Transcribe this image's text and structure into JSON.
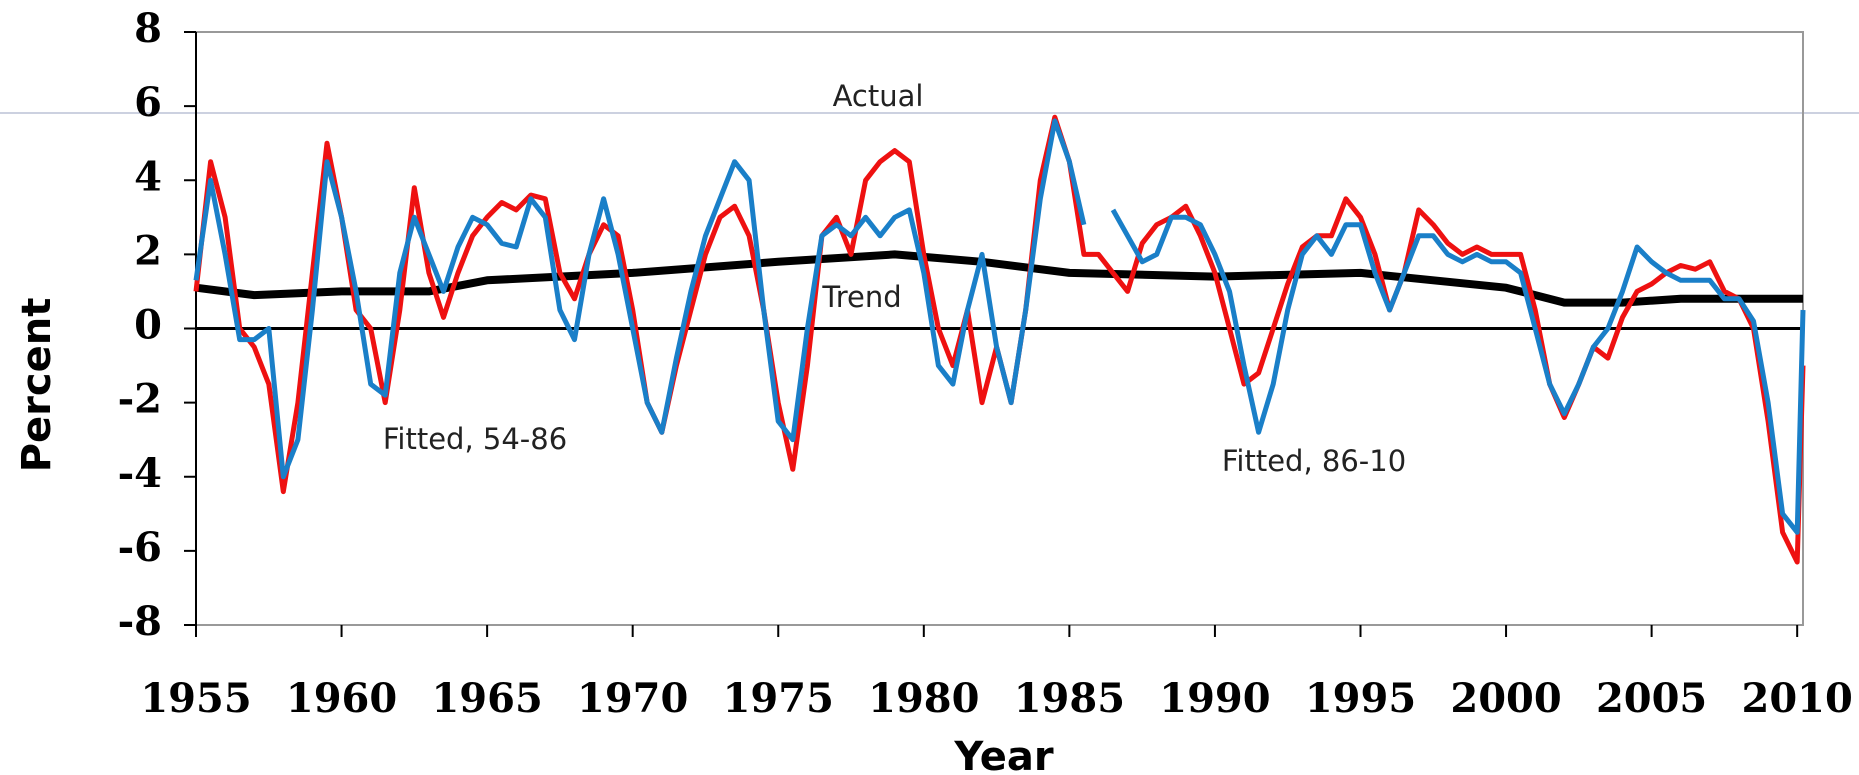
{
  "chart_data": {
    "type": "line",
    "xlabel": "Year",
    "ylabel": "Percent",
    "xlim": [
      1955,
      2010.2
    ],
    "ylim": [
      -8,
      8
    ],
    "xticks": [
      1955,
      1960,
      1965,
      1970,
      1975,
      1980,
      1985,
      1990,
      1995,
      2000,
      2005,
      2010
    ],
    "yticks": [
      -8,
      -6,
      -4,
      -2,
      0,
      2,
      4,
      6,
      8
    ],
    "annotations": [
      "Actual",
      "Trend",
      "Fitted, 54-86",
      "Fitted, 86-10"
    ],
    "x": [
      1955,
      1955.5,
      1956,
      1956.5,
      1957,
      1957.5,
      1958,
      1958.5,
      1959,
      1959.5,
      1960,
      1960.5,
      1961,
      1961.5,
      1962,
      1962.5,
      1963,
      1963.5,
      1964,
      1964.5,
      1965,
      1965.5,
      1966,
      1966.5,
      1967,
      1967.5,
      1968,
      1968.5,
      1969,
      1969.5,
      1970,
      1970.5,
      1971,
      1971.5,
      1972,
      1972.5,
      1973,
      1973.5,
      1974,
      1974.5,
      1975,
      1975.5,
      1976,
      1976.5,
      1977,
      1977.5,
      1978,
      1978.5,
      1979,
      1979.5,
      1980,
      1980.5,
      1981,
      1981.5,
      1982,
      1982.5,
      1983,
      1983.5,
      1984,
      1984.5,
      1985,
      1985.5,
      1986,
      1986.5,
      1987,
      1987.5,
      1988,
      1988.5,
      1989,
      1989.5,
      1990,
      1990.5,
      1991,
      1991.5,
      1992,
      1992.5,
      1993,
      1993.5,
      1994,
      1994.5,
      1995,
      1995.5,
      1996,
      1996.5,
      1997,
      1997.5,
      1998,
      1998.5,
      1999,
      1999.5,
      2000,
      2000.5,
      2001,
      2001.5,
      2002,
      2002.5,
      2003,
      2003.5,
      2004,
      2004.5,
      2005,
      2005.5,
      2006,
      2006.5,
      2007,
      2007.5,
      2008,
      2008.5,
      2009,
      2009.5,
      2010,
      2010.2
    ],
    "series": [
      {
        "color": "#ee1111",
        "values": [
          1.0,
          4.5,
          3.0,
          0.0,
          -0.5,
          -1.5,
          -4.4,
          -2.0,
          1.5,
          5.0,
          3.0,
          0.5,
          0.0,
          -2.0,
          0.5,
          3.8,
          1.5,
          0.3,
          1.5,
          2.5,
          3.0,
          3.4,
          3.2,
          3.6,
          3.5,
          1.5,
          0.8,
          2.0,
          2.8,
          2.5,
          0.5,
          -2.0,
          -2.8,
          -1.0,
          0.5,
          2.0,
          3.0,
          3.3,
          2.5,
          0.5,
          -2.0,
          -3.8,
          -1.0,
          2.5,
          3.0,
          2.0,
          4.0,
          4.5,
          4.8,
          4.5,
          2.0,
          0.0,
          -1.0,
          0.5,
          -2.0,
          -0.5,
          -2.0,
          0.5,
          4.0,
          5.7,
          4.5,
          2.0,
          2.0,
          1.5,
          1.0,
          2.3,
          2.8,
          3.0,
          3.3,
          2.5,
          1.5,
          0.0,
          -1.5,
          -1.2,
          0.0,
          1.2,
          2.2,
          2.5,
          2.5,
          3.5,
          3.0,
          2.0,
          0.5,
          1.5,
          3.2,
          2.8,
          2.3,
          2.0,
          2.2,
          2.0,
          2.0,
          2.0,
          0.5,
          -1.5,
          -2.4,
          -1.5,
          -0.5,
          -0.8,
          0.3,
          1.0,
          1.2,
          1.5,
          1.7,
          1.6,
          1.8,
          1.0,
          0.8,
          0.0,
          -2.5,
          -5.5,
          -6.3,
          -1.0
        ]
      },
      {
        "color": "#1a7fc8",
        "values": [
          1.3,
          4.0,
          2.0,
          -0.3,
          -0.3,
          0.0,
          -4.0,
          -3.0,
          0.5,
          4.5,
          3.0,
          1.0,
          -1.5,
          -1.8,
          1.5,
          3.0,
          2.0,
          1.0,
          2.2,
          3.0,
          2.8,
          2.3,
          2.2,
          3.5,
          3.0,
          0.5,
          -0.3,
          2.0,
          3.5,
          2.0,
          0.0,
          -2.0,
          -2.8,
          -0.8,
          1.0,
          2.5,
          3.5,
          4.5,
          4.0,
          0.5,
          -2.5,
          -3.0,
          0.0,
          2.5,
          2.8,
          2.5,
          3.0,
          2.5,
          3.0,
          3.2,
          1.5,
          -1.0,
          -1.5,
          0.5,
          2.0,
          -0.5,
          -2.0,
          0.5,
          3.5,
          5.6,
          4.5,
          2.8,
          null,
          3.2,
          2.5,
          1.8,
          2.0,
          3.0,
          3.0,
          2.8,
          2.0,
          1.0,
          -1.0,
          -2.8,
          -1.5,
          0.5,
          2.0,
          2.5,
          2.0,
          2.8,
          2.8,
          1.5,
          0.5,
          1.5,
          2.5,
          2.5,
          2.0,
          1.8,
          2.0,
          1.8,
          1.8,
          1.5,
          0.0,
          -1.5,
          -2.3,
          -1.5,
          -0.5,
          0.0,
          1.0,
          2.2,
          1.8,
          1.5,
          1.3,
          1.3,
          1.3,
          0.8,
          0.8,
          0.2,
          -2.0,
          -5.0,
          -5.5,
          0.5
        ]
      },
      {
        "color": "#000000",
        "x": [
          1955,
          1957,
          1960,
          1963,
          1965,
          1970,
          1975,
          1979,
          1982,
          1985,
          1990,
          1995,
          2000,
          2002,
          2004,
          2006,
          2010.2
        ],
        "values": [
          1.1,
          0.9,
          1.0,
          1.0,
          1.3,
          1.5,
          1.8,
          2.0,
          1.8,
          1.5,
          1.4,
          1.5,
          1.1,
          0.7,
          0.7,
          0.8,
          0.8
        ]
      }
    ]
  }
}
